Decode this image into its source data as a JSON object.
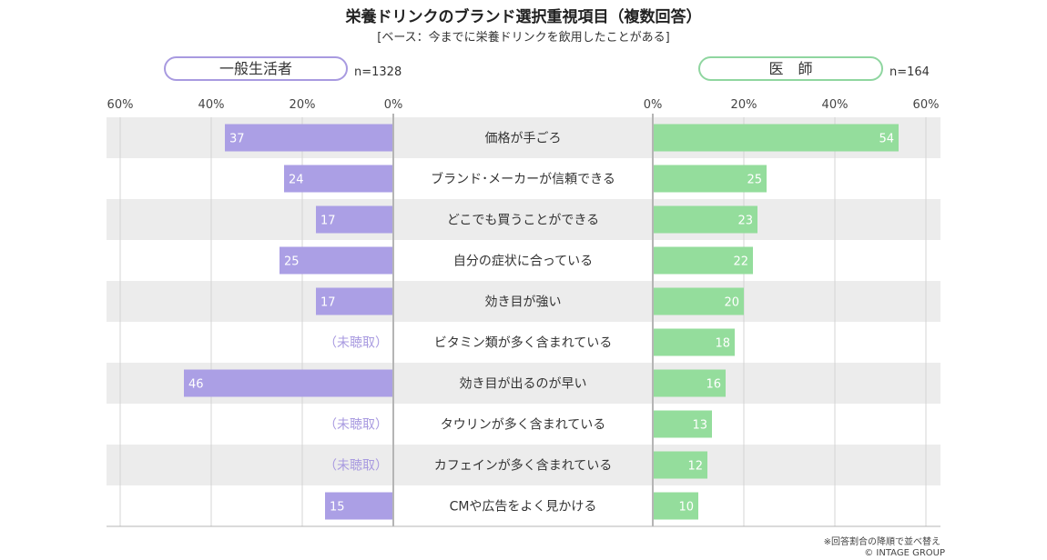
{
  "title": "栄養ドリンクのブランド選択重視項目（複数回答）",
  "subtitle": "[ベース：今までに栄養ドリンクを飲用したことがある]",
  "notes": {
    "sort": "※回答割合の降順で並べ替え",
    "copyright": "© INTAGE GROUP"
  },
  "chart_data": {
    "type": "bar",
    "orientation": "horizontal",
    "layout": "butterfly",
    "unit": "%",
    "xlim": [
      0,
      60
    ],
    "tick_labels": [
      "0%",
      "20%",
      "40%",
      "60%"
    ],
    "categories": [
      "価格が手ごろ",
      "ブランド･メーカーが信頼できる",
      "どこでも買うことができる",
      "自分の症状に合っている",
      "効き目が強い",
      "ビタミン類が多く含まれている",
      "効き目が出るのが早い",
      "タウリンが多く含まれている",
      "カフェインが多く含まれている",
      "CMや広告をよく見かける"
    ],
    "missing_label": "（未聴取）",
    "series": [
      {
        "name": "一般生活者",
        "n_label": "n=1328",
        "side": "left",
        "color": "#ab9fe5",
        "values": [
          37,
          24,
          17,
          25,
          17,
          null,
          46,
          null,
          null,
          15
        ]
      },
      {
        "name": "医　師",
        "n_label": "n=164",
        "side": "right",
        "color": "#94dd9c",
        "values": [
          54,
          25,
          23,
          22,
          20,
          18,
          16,
          13,
          12,
          10
        ]
      }
    ],
    "row_band_color": "#ececec",
    "grid": true
  }
}
